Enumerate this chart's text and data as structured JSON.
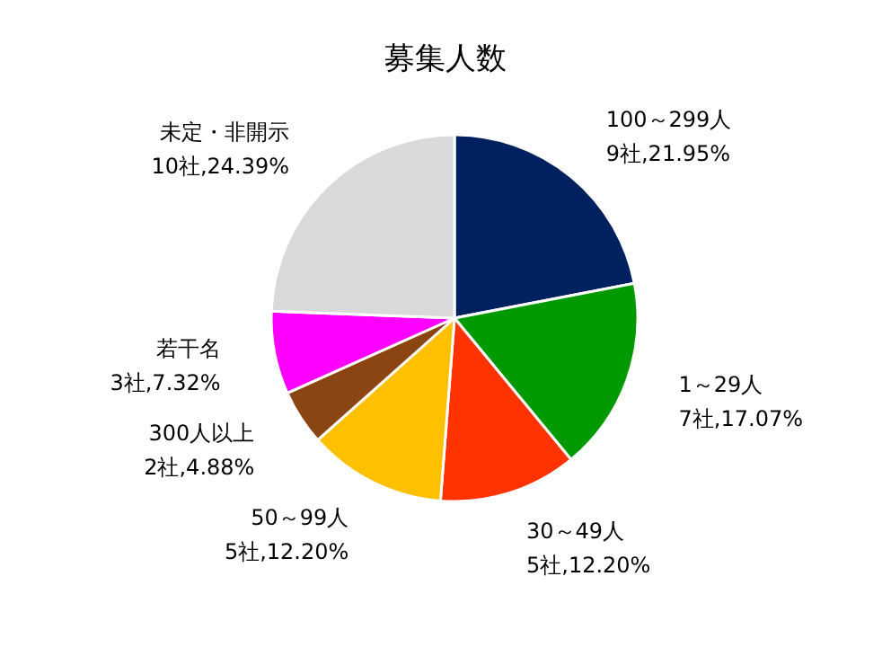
{
  "chart_data": {
    "type": "pie",
    "title": "募集人数",
    "categories": [
      "100～299人",
      "1～29人",
      "30～49人",
      "50～99人",
      "300人以上",
      "若干名",
      "未定・非開示"
    ],
    "values": [
      9,
      7,
      5,
      5,
      2,
      3,
      10
    ],
    "value_labels": [
      "9社,21.95%",
      "7社,17.07%",
      "5社,12.20%",
      "5社,12.20%",
      "2社,4.88%",
      "3社,7.32%",
      "10社,24.39%"
    ],
    "colors": [
      "#002060",
      "#009900",
      "#ff3300",
      "#ffc000",
      "#8b4513",
      "#ff00ff",
      "#d9d9d9"
    ]
  }
}
